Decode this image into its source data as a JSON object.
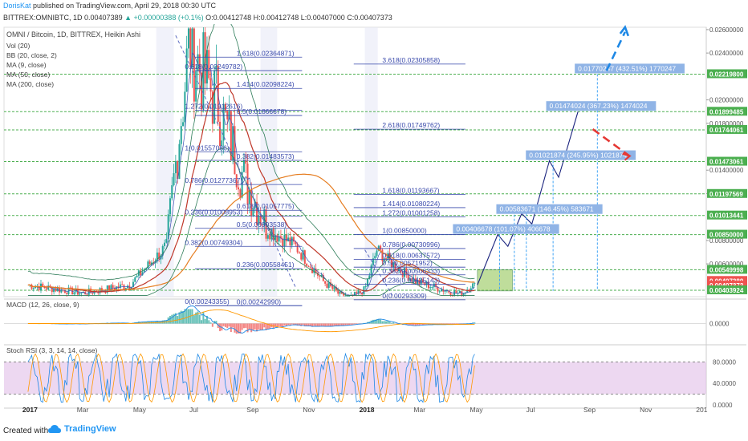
{
  "header": {
    "author": "DorisKat",
    "published_text": "published on TradingView.com, April 29, 2018 00:30 UTC",
    "symbol": "BITTREX:OMNIBTC, 1D",
    "last": "0.00407389",
    "change": "▲ +0.00000388 (+0.1%)",
    "ohlc": "O:0.00412748 H:0.00412748 L:0.00407000 C:0.00407373"
  },
  "legend": {
    "title": "OMNI / Bitcoin, 1D, BITTREX, Heikin Ashi",
    "items": [
      "Vol (20)",
      "BB (20, close, 2)",
      "MA (9, close)",
      "MA (50, close)",
      "MA (200, close)"
    ]
  },
  "macd_label": "MACD (12, 26, close, 9)",
  "stoch_label": "Stoch RSI (3, 3, 14, 14, close)",
  "footer": {
    "created_with": "Created with",
    "brand": "TradingView"
  },
  "colors": {
    "up": "#26a69a",
    "down": "#ef5350",
    "ma50": "#c0392b",
    "ma200": "#e67e22",
    "bb": "#2f7d5a",
    "fib": "#3949ab",
    "green_dash": "#4caf50",
    "stoch_fill": "#e1bee7",
    "projection": "#1e88e5",
    "label_bg": "#90b4e6"
  },
  "chart_data": {
    "type": "candlestick",
    "y_min": 0.0032,
    "y_max": 0.0262,
    "x_tick_labels": [
      {
        "label": "2017",
        "x_date": "2017-01-01"
      },
      {
        "label": "Mar",
        "x_date": "2017-03-01"
      },
      {
        "label": "May",
        "x_date": "2017-05-01"
      },
      {
        "label": "Jul",
        "x_date": "2017-07-01"
      },
      {
        "label": "Sep",
        "x_date": "2017-09-01"
      },
      {
        "label": "Nov",
        "x_date": "2017-11-01"
      },
      {
        "label": "2018",
        "x_date": "2018-01-01"
      },
      {
        "label": "Mar",
        "x_date": "2018-03-01"
      },
      {
        "label": "May",
        "x_date": "2018-05-01"
      },
      {
        "label": "Jul",
        "x_date": "2018-07-01"
      },
      {
        "label": "Sep",
        "x_date": "2018-09-01"
      },
      {
        "label": "Nov",
        "x_date": "2018-11-01"
      },
      {
        "label": "201",
        "x_date": "2019-01-01"
      }
    ],
    "y_tick_labels": [
      {
        "label": "0.02600000",
        "value": 0.026
      },
      {
        "label": "0.02400000",
        "value": 0.024
      },
      {
        "label": "0.02000000",
        "value": 0.02
      },
      {
        "label": "0.01800000",
        "value": 0.018
      },
      {
        "label": "0.01400000",
        "value": 0.014
      },
      {
        "label": "0.01200000",
        "value": 0.012
      },
      {
        "label": "0.00800000",
        "value": 0.008
      },
      {
        "label": "0.00600000",
        "value": 0.006
      }
    ],
    "price_badges": [
      {
        "label": "0.02219800",
        "value": 0.022198,
        "color": "#4caf50"
      },
      {
        "label": "0.01899485",
        "value": 0.01899485,
        "color": "#4caf50"
      },
      {
        "label": "0.01744061",
        "value": 0.01744061,
        "color": "#4caf50"
      },
      {
        "label": "0.01473061",
        "value": 0.01473061,
        "color": "#4caf50"
      },
      {
        "label": "0.01197569",
        "value": 0.01197569,
        "color": "#4caf50"
      },
      {
        "label": "0.01013441",
        "value": 0.01013441,
        "color": "#4caf50"
      },
      {
        "label": "0.00850000",
        "value": 0.0085,
        "color": "#4caf50"
      },
      {
        "label": "0.00549998",
        "value": 0.00549998,
        "color": "#4caf50"
      },
      {
        "label": "0.00407389",
        "value": 0.00455,
        "color": "#ef5350"
      },
      {
        "label": "0.00407373",
        "value": 0.00415,
        "color": "#ef5350"
      },
      {
        "label": "0.00403924",
        "value": 0.00375,
        "color": "#4caf50"
      }
    ],
    "fib_left": [
      {
        "label": "1.618(0.02364871)",
        "value": 0.02364871
      },
      {
        "label": "0.618(0.02249782)",
        "value": 0.02249782
      },
      {
        "label": "1.414(0.02098224)",
        "value": 0.02098224
      },
      {
        "label": "1.272(0.01912616)",
        "value": 0.01912616
      },
      {
        "label": "0.5(0.01866678)",
        "value": 0.01866678
      },
      {
        "label": "1(0.01557086)",
        "value": 0.01557086
      },
      {
        "label": "0.382(0.01483573)",
        "value": 0.01483573
      },
      {
        "label": "0.786(0.01277367)",
        "value": 0.01277367
      },
      {
        "label": "0.618(0.01057775)",
        "value": 0.01057775
      },
      {
        "label": "0.236(0.01008953)",
        "value": 0.01008953
      },
      {
        "label": "0.5(0.00903538)",
        "value": 0.00903538
      },
      {
        "label": "0.382(0.00749304)",
        "value": 0.00749304
      },
      {
        "label": "0.236(0.00558451)",
        "value": 0.00558451
      },
      {
        "label": "0(0.00243355)",
        "value": 0.00243355
      },
      {
        "label": "0(0.00242990)",
        "value": 0.0024299
      }
    ],
    "fib_right": [
      {
        "label": "3.618(0.02305858)",
        "value": 0.02305858
      },
      {
        "label": "2.618(0.01749762)",
        "value": 0.01749762
      },
      {
        "label": "1.618(0.01193667)",
        "value": 0.01193667
      },
      {
        "label": "1.414(0.01080224)",
        "value": 0.01080224
      },
      {
        "label": "1.272(0.01001258)",
        "value": 0.01001258
      },
      {
        "label": "1(0.00850000)",
        "value": 0.0085
      },
      {
        "label": "0.786(0.00730996)",
        "value": 0.00730996
      },
      {
        "label": "0.618(0.00637572)",
        "value": 0.00637572
      },
      {
        "label": "0.5(0.00571952)",
        "value": 0.00571952
      },
      {
        "label": "0.382(0.00506333)",
        "value": 0.00506333
      },
      {
        "label": "0.236(0.00425143)",
        "value": 0.00425143
      },
      {
        "label": "0(0.00293309)",
        "value": 0.00293309
      }
    ],
    "targets": [
      {
        "label": "0.00406678 (101.07%) 406678",
        "value": 0.0085
      },
      {
        "label": "0.00583671 (146.45%) 583671",
        "value": 0.0102
      },
      {
        "label": "0.01021874 (245.95%) 1021874",
        "value": 0.0148
      },
      {
        "label": "0.01474024 (367.23%) 1474024",
        "value": 0.019
      },
      {
        "label": "0.01770247 (432.51%) 1770247",
        "value": 0.0222
      }
    ],
    "macd_scale": [
      {
        "label": "0.0000",
        "value": 0
      }
    ],
    "stoch_scale": [
      {
        "label": "80.0000",
        "value": 80
      },
      {
        "label": "40.0000",
        "value": 40
      },
      {
        "label": "0.0000",
        "value": 0
      }
    ]
  }
}
